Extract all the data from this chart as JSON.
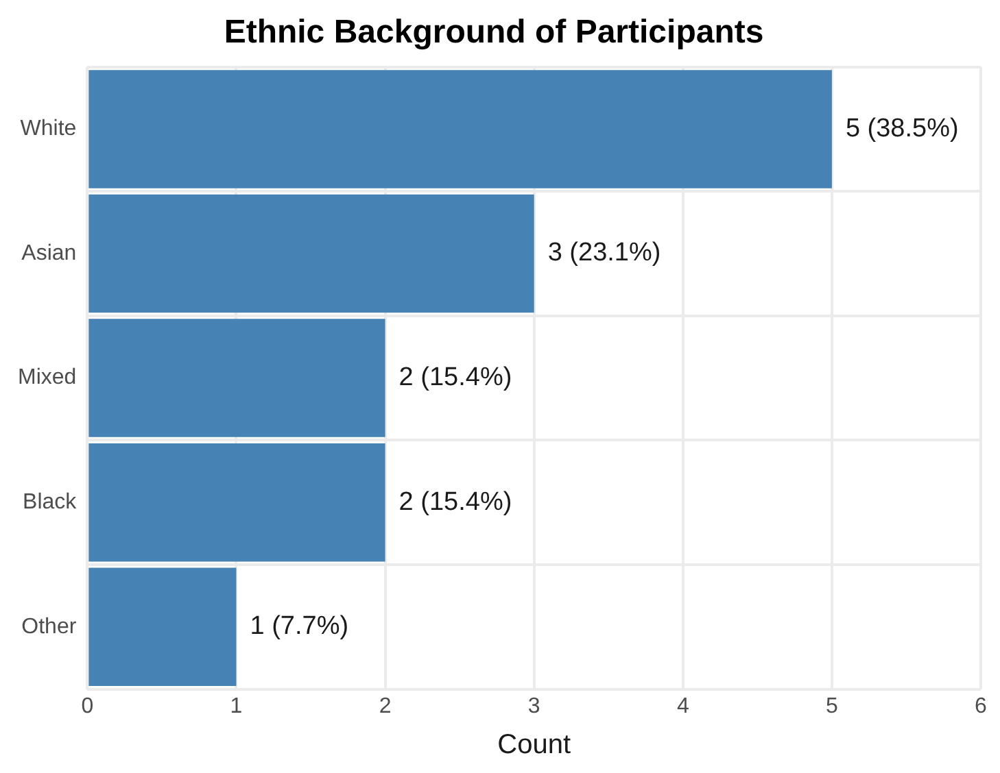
{
  "chart_data": {
    "type": "bar",
    "orientation": "horizontal",
    "title": "Ethnic Background of Participants",
    "xlabel": "Count",
    "categories": [
      "White",
      "Asian",
      "Mixed",
      "Black",
      "Other"
    ],
    "values": [
      5,
      3,
      2,
      2,
      1
    ],
    "value_labels": [
      "5 (38.5%)",
      "3 (23.1%)",
      "2 (15.4%)",
      "2 (15.4%)",
      "1 (7.7%)"
    ],
    "color": "#4682b4",
    "xlim": [
      0,
      6
    ],
    "xticks": [
      0,
      1,
      2,
      3,
      4,
      5,
      6
    ],
    "grid": true,
    "legend": false
  }
}
